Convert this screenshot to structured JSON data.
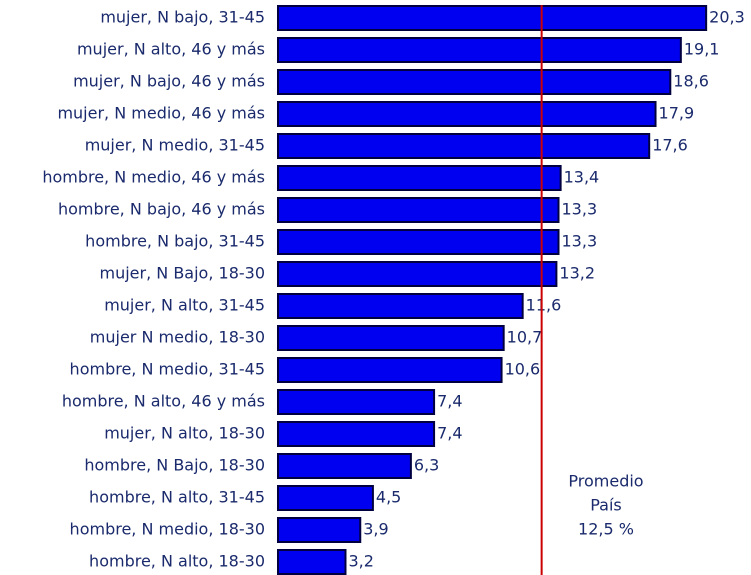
{
  "chart_data": {
    "type": "hbar",
    "categories": [
      "mujer, N bajo, 31-45",
      "mujer, N alto, 46 y más",
      "mujer, N bajo, 46 y más",
      "mujer, N medio, 46 y más",
      "mujer, N medio, 31-45",
      "hombre, N medio, 46 y más",
      "hombre, N bajo, 46 y más",
      "hombre, N bajo, 31-45",
      "mujer, N Bajo, 18-30",
      "mujer, N alto, 31-45",
      "mujer N medio, 18-30",
      "hombre, N medio, 31-45",
      "hombre, N alto, 46 y más",
      "mujer, N alto, 18-30",
      "hombre, N Bajo, 18-30",
      "hombre, N alto, 31-45",
      "hombre, N medio, 18-30",
      "hombre, N alto, 18-30"
    ],
    "values": [
      20.3,
      19.1,
      18.6,
      17.9,
      17.6,
      13.4,
      13.3,
      13.3,
      13.2,
      11.6,
      10.7,
      10.6,
      7.4,
      7.4,
      6.3,
      4.5,
      3.9,
      3.2
    ],
    "value_labels": [
      "20,3",
      "19,1",
      "18,6",
      "17,9",
      "17,6",
      "13,4",
      "13,3",
      "13,3",
      "13,2",
      "11,6",
      "10,7",
      "10,6",
      "7,4",
      "7,4",
      "6,3",
      "4,5",
      "3,9",
      "3,2"
    ],
    "color": "#0000f0",
    "xlim": [
      0,
      22
    ],
    "reference_line": {
      "value": 12.5,
      "color": "#cc0000",
      "label_lines": [
        "Promedio",
        "País",
        "12,5 %"
      ]
    }
  }
}
